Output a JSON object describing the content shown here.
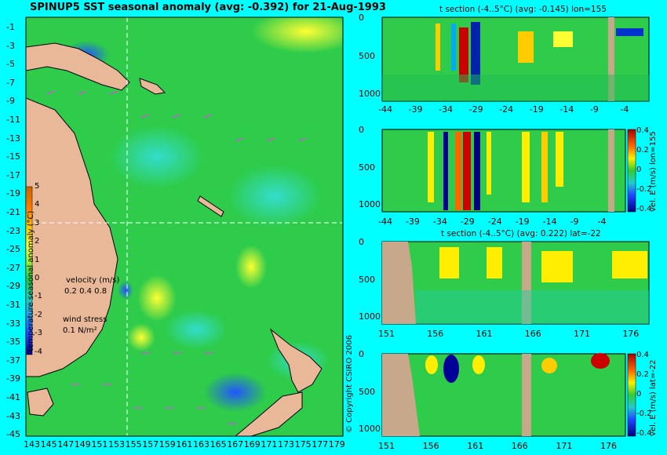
{
  "main_title": "SPINUP5 SST seasonal anomaly (avg: -0.392) for 21-Aug-1993",
  "copyright": "© Copyright CSIRO 2006",
  "colors": {
    "background": "#00ffff",
    "land": "#e8b898",
    "ocean_mid": "#2ecc4a",
    "section_land": "#c8a88a"
  },
  "chart_data": [
    {
      "type": "heatmap",
      "title": "SPINUP5 SST seasonal anomaly (avg: -0.392) for 21-Aug-1993",
      "x_ticks": [
        "143",
        "145",
        "147",
        "149",
        "151",
        "153",
        "155",
        "157",
        "159",
        "161",
        "163",
        "165",
        "167",
        "169",
        "171",
        "173",
        "175",
        "177",
        "179"
      ],
      "y_ticks": [
        "-1",
        "-3",
        "-5",
        "-7",
        "-9",
        "-11",
        "-13",
        "-15",
        "-17",
        "-19",
        "-21",
        "-23",
        "-25",
        "-27",
        "-29",
        "-31",
        "-33",
        "-35",
        "-37",
        "-39",
        "-41",
        "-43",
        "-45"
      ],
      "xlim": [
        143,
        180
      ],
      "ylim": [
        -45,
        0
      ],
      "crosshair": {
        "lon": 155,
        "lat": -22
      },
      "colorbar": {
        "label": "temperature seasonal anomaly (°C)",
        "ticks": [
          "5",
          "4",
          "3",
          "2",
          "1",
          "0",
          "-1",
          "-2",
          "-3",
          "-4"
        ],
        "range": [
          -4,
          5
        ]
      },
      "legend": {
        "velocity_label": "velocity (m/s)",
        "velocity_scale": "0.2 0.4 0.8",
        "wind_label": "wind stress",
        "wind_scale": "0.1 N/m²"
      }
    },
    {
      "type": "heatmap",
      "title": "t section (-4..5°C) (avg: -0.145) lon=155",
      "x_ticks": [
        "-44",
        "-39",
        "-34",
        "-29",
        "-24",
        "-19",
        "-14",
        "-9",
        "-4"
      ],
      "y_ticks": [
        "0",
        "500",
        "1000"
      ],
      "xlim": [
        -45,
        0
      ],
      "ylim": [
        1000,
        0
      ]
    },
    {
      "type": "heatmap",
      "title": "",
      "x_ticks": [
        "-44",
        "-39",
        "-34",
        "-29",
        "-24",
        "-19",
        "-14",
        "-9",
        "-4"
      ],
      "y_ticks": [
        "0",
        "500",
        "1000"
      ],
      "xlim": [
        -45,
        0
      ],
      "ylim": [
        1000,
        0
      ],
      "colorbar": {
        "label": "vel. E (m/s) lon=155",
        "ticks": [
          "0.4",
          "0.2",
          "0",
          "-0.2",
          "-0.4"
        ],
        "range": [
          -0.4,
          0.4
        ]
      }
    },
    {
      "type": "heatmap",
      "title": "t section (-4..5°C) (avg: 0.222) lat=-22",
      "x_ticks": [
        "151",
        "156",
        "161",
        "166",
        "171",
        "176"
      ],
      "y_ticks": [
        "0",
        "500",
        "1000"
      ],
      "xlim": [
        150,
        180
      ],
      "ylim": [
        1000,
        0
      ]
    },
    {
      "type": "heatmap",
      "title": "",
      "x_ticks": [
        "151",
        "156",
        "161",
        "166",
        "171",
        "176"
      ],
      "y_ticks": [
        "0",
        "500",
        "1000"
      ],
      "xlim": [
        150,
        180
      ],
      "ylim": [
        1000,
        0
      ],
      "colorbar": {
        "label": "vel. E (m/s) lat=-22",
        "ticks": [
          "0.4",
          "0.2",
          "0",
          "-0.2",
          "-0.4"
        ],
        "range": [
          -0.4,
          0.4
        ]
      }
    }
  ]
}
